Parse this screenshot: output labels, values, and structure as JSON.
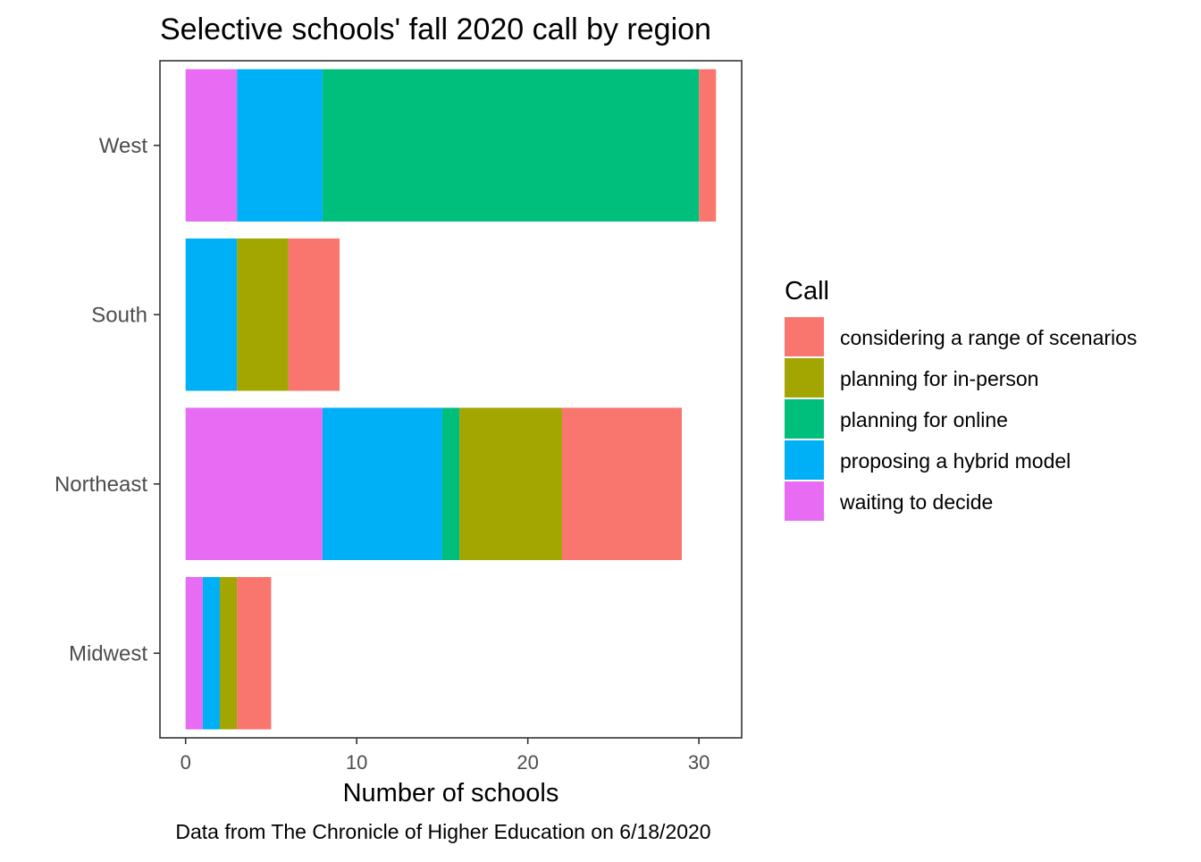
{
  "chart_data": {
    "type": "bar",
    "orientation": "horizontal",
    "stacked": true,
    "title": "Selective schools' fall 2020 call by region",
    "xlabel": "Number of schools",
    "ylabel": "",
    "caption": "Data from The Chronicle of Higher Education on 6/18/2020",
    "categories": [
      "West",
      "South",
      "Northeast",
      "Midwest"
    ],
    "xlim": [
      -1.5,
      32.5
    ],
    "xticks": [
      0,
      10,
      20,
      30
    ],
    "grid": false,
    "legend": {
      "title": "Call",
      "placement": "right"
    },
    "stack_order": [
      "waiting to decide",
      "proposing a hybrid model",
      "planning for online",
      "planning for in-person",
      "considering a range of scenarios"
    ],
    "series": [
      {
        "name": "considering a range of scenarios",
        "color": "#F8766D",
        "values": [
          1,
          3,
          7,
          2
        ]
      },
      {
        "name": "planning for in-person",
        "color": "#A3A500",
        "values": [
          0,
          3,
          6,
          1
        ]
      },
      {
        "name": "planning for online",
        "color": "#00BF7D",
        "values": [
          22,
          0,
          1,
          0
        ]
      },
      {
        "name": "proposing a hybrid model",
        "color": "#00B0F6",
        "values": [
          5,
          3,
          7,
          1
        ]
      },
      {
        "name": "waiting to decide",
        "color": "#E76BF3",
        "values": [
          3,
          0,
          8,
          1
        ]
      }
    ]
  }
}
